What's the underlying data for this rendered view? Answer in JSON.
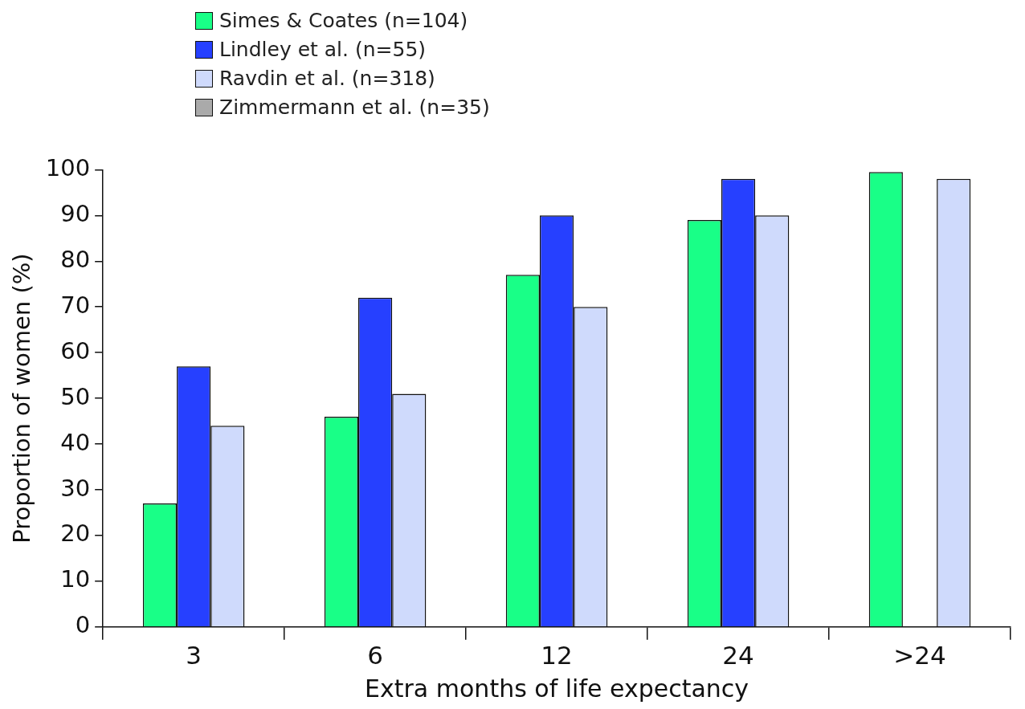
{
  "chart_data": {
    "type": "bar",
    "xlabel": "Extra months of life expectancy",
    "ylabel": "Proportion of women (%)",
    "categories": [
      "3",
      "6",
      "12",
      "24",
      ">24"
    ],
    "series": [
      {
        "name": "Simes & Coates (n=104)",
        "color": "#19ff87",
        "values": [
          27,
          46,
          77,
          89,
          99.5
        ]
      },
      {
        "name": "Lindley et al. (n=55)",
        "color": "#2640ff",
        "values": [
          57,
          72,
          90,
          98,
          null
        ]
      },
      {
        "name": "Ravdin et al. (n=318)",
        "color": "#cfdafc",
        "values": [
          44,
          51,
          70,
          90,
          98
        ]
      },
      {
        "name": "Zimmermann et al. (n=35)",
        "color": "#aaaaaa",
        "values": [
          null,
          null,
          null,
          null,
          null
        ]
      }
    ],
    "ylim": [
      0,
      100
    ],
    "yticks": [
      0,
      10,
      20,
      30,
      40,
      50,
      60,
      70,
      80,
      90,
      100
    ],
    "grid": false,
    "legend": "top left"
  }
}
